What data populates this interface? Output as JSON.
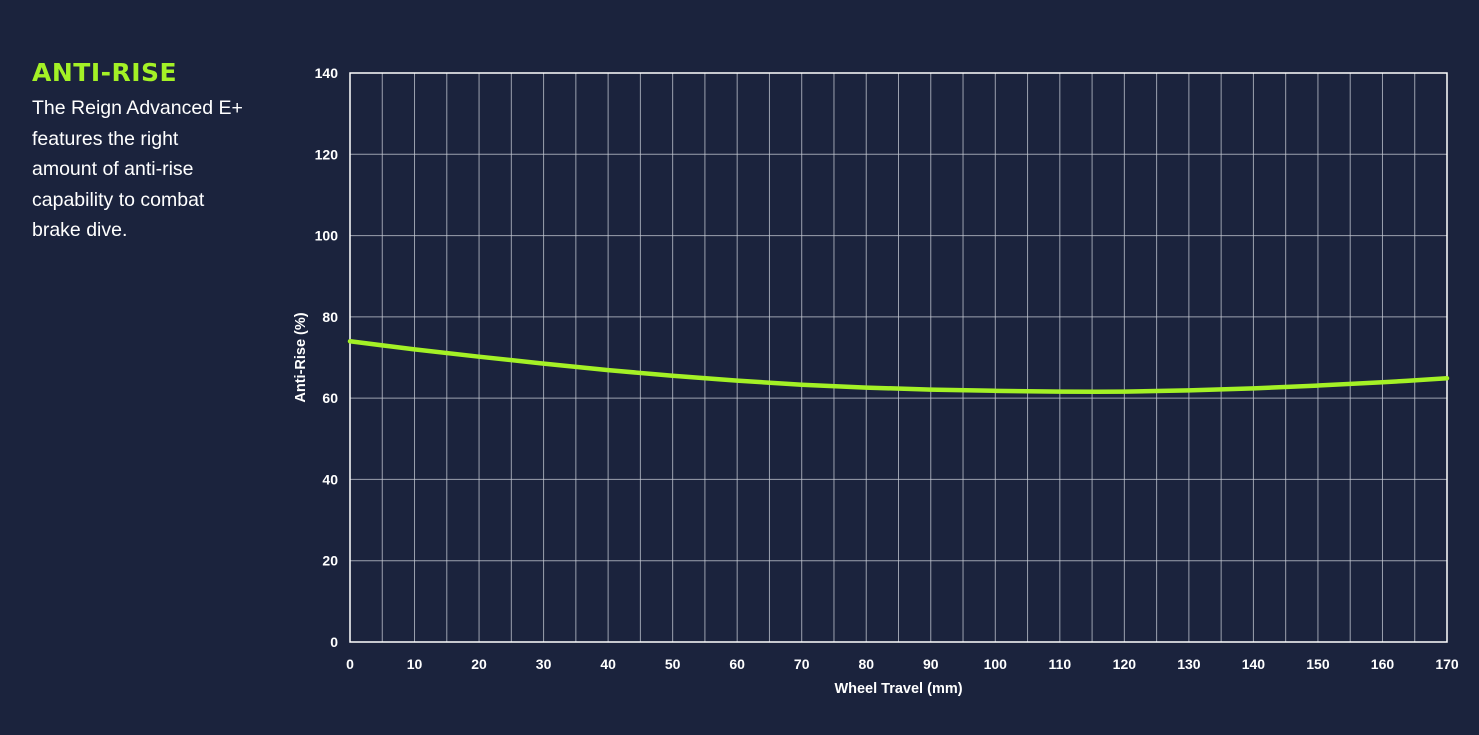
{
  "sidebar": {
    "title": "ANTI-RISE",
    "description": "The Reign Advanced E+ features the right amount of anti-rise capability to combat brake dive."
  },
  "colors": {
    "background": "#1b233d",
    "accent": "#a4f126",
    "grid": "#c8ccd6",
    "text": "#ffffff"
  },
  "chart_data": {
    "type": "line",
    "xlabel": "Wheel Travel (mm)",
    "ylabel": "Anti-Rise (%)",
    "xlim": [
      0,
      170
    ],
    "ylim": [
      0,
      140
    ],
    "xticks": [
      0,
      10,
      20,
      30,
      40,
      50,
      60,
      70,
      80,
      90,
      100,
      110,
      120,
      130,
      140,
      150,
      160,
      170
    ],
    "yticks": [
      0,
      20,
      40,
      60,
      80,
      100,
      120,
      140
    ],
    "grid": true,
    "series": [
      {
        "color": "#a4f126",
        "x": [
          0,
          10,
          20,
          30,
          40,
          50,
          60,
          70,
          80,
          90,
          100,
          110,
          120,
          130,
          140,
          150,
          160,
          170
        ],
        "y": [
          74,
          72,
          70.2,
          68.5,
          66.9,
          65.5,
          64.3,
          63.3,
          62.6,
          62.1,
          61.8,
          61.6,
          61.6,
          61.9,
          62.4,
          63.1,
          63.9,
          64.9
        ]
      }
    ]
  }
}
